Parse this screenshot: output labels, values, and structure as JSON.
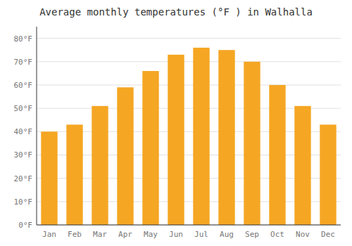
{
  "chart_data": {
    "type": "bar",
    "title": "Average monthly temperatures (°F ) in Walhalla",
    "categories": [
      "Jan",
      "Feb",
      "Mar",
      "Apr",
      "May",
      "Jun",
      "Jul",
      "Aug",
      "Sep",
      "Oct",
      "Nov",
      "Dec"
    ],
    "values": [
      40,
      43,
      51,
      59,
      66,
      73,
      76,
      75,
      70,
      60,
      51,
      43
    ],
    "color": "#F5A623",
    "ylim": [
      0,
      85
    ],
    "yticks": [
      {
        "value": 0,
        "label": "0°F"
      },
      {
        "value": 10,
        "label": "10°F"
      },
      {
        "value": 20,
        "label": "20°F"
      },
      {
        "value": 30,
        "label": "30°F"
      },
      {
        "value": 40,
        "label": "40°F"
      },
      {
        "value": 50,
        "label": "50°F"
      },
      {
        "value": 60,
        "label": "60°F"
      },
      {
        "value": 70,
        "label": "70°F"
      },
      {
        "value": 80,
        "label": "80°F"
      }
    ],
    "grid": true
  }
}
